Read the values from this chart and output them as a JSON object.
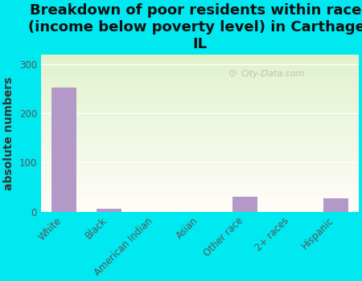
{
  "title": "Breakdown of poor residents within races\n(income below poverty level) in Carthage,\nIL",
  "categories": [
    "White",
    "Black",
    "American Indian",
    "Asian",
    "Other race",
    "2+ races",
    "Hispanic"
  ],
  "values": [
    253,
    5,
    0,
    0,
    30,
    0,
    27
  ],
  "bar_color": "#b399c8",
  "ylabel": "absolute numbers",
  "ylim": [
    0,
    320
  ],
  "yticks": [
    0,
    100,
    200,
    300
  ],
  "background_color": "#00e8f0",
  "plot_bg_color": "#e8f5e0",
  "watermark": "City-Data.com",
  "title_fontsize": 13,
  "ylabel_fontsize": 10,
  "tick_fontsize": 8.5,
  "grid_color": "#d0d8c0",
  "tick_label_color": "#555555"
}
